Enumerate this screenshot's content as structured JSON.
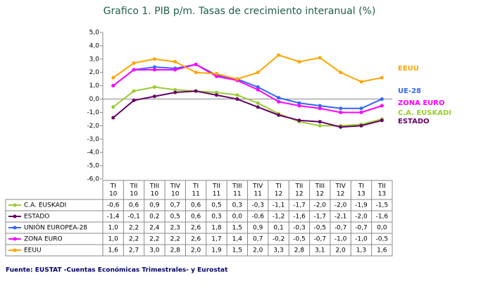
{
  "chart_data": {
    "type": "line",
    "title": "Grafico 1. PIB p/m. Tasas de crecimiento interanual (%)",
    "categories": [
      [
        "TI",
        "10"
      ],
      [
        "TII",
        "10"
      ],
      [
        "TIII",
        "10"
      ],
      [
        "TIV",
        "10"
      ],
      [
        "TI",
        "11"
      ],
      [
        "TII",
        "11"
      ],
      [
        "TIII",
        "11"
      ],
      [
        "TIV",
        "11"
      ],
      [
        "TI",
        "12"
      ],
      [
        "TII",
        "12"
      ],
      [
        "TIII",
        "12"
      ],
      [
        "TIV",
        "12"
      ],
      [
        "TI",
        "13"
      ],
      [
        "TII",
        "13"
      ]
    ],
    "ylim": [
      -6,
      5
    ],
    "yticks": [
      {
        "value": -6,
        "label": "-6,0"
      },
      {
        "value": -5,
        "label": "-5,0"
      },
      {
        "value": -4,
        "label": "-4,0"
      },
      {
        "value": -3,
        "label": "-3,0"
      },
      {
        "value": -2,
        "label": "-2,0"
      },
      {
        "value": -1,
        "label": "-1,0"
      },
      {
        "value": 0,
        "label": "0,0"
      },
      {
        "value": 1,
        "label": "1,0"
      },
      {
        "value": 2,
        "label": "2,0"
      },
      {
        "value": 3,
        "label": "3,0"
      },
      {
        "value": 4,
        "label": "4,0"
      },
      {
        "value": 5,
        "label": "5,0"
      }
    ],
    "grid": false,
    "series": [
      {
        "name": "C.A. EUSKADI",
        "label": "C.A. EUSKADI",
        "color": "#99cc33",
        "values": [
          -0.6,
          0.6,
          0.9,
          0.7,
          0.6,
          0.5,
          0.3,
          -0.3,
          -1.1,
          -1.7,
          -2.0,
          -2.0,
          -1.9,
          -1.5
        ],
        "value_labels": [
          "-0,6",
          "0,6",
          "0,9",
          "0,7",
          "0,6",
          "0,5",
          "0,3",
          "-0,3",
          "-1,1",
          "-1,7",
          "-2,0",
          "-2,0",
          "-1,9",
          "-1,5"
        ]
      },
      {
        "name": "ESTADO",
        "label": "ESTADO",
        "color": "#660066",
        "values": [
          -1.4,
          -0.1,
          0.2,
          0.5,
          0.6,
          0.3,
          0.0,
          -0.6,
          -1.2,
          -1.6,
          -1.7,
          -2.1,
          -2.0,
          -1.6
        ],
        "value_labels": [
          "-1,4",
          "-0,1",
          "0,2",
          "0,5",
          "0,6",
          "0,3",
          "0,0",
          "-0,6",
          "-1,2",
          "-1,6",
          "-1,7",
          "-2,1",
          "-2,0",
          "-1,6"
        ]
      },
      {
        "name": "UNIÓN EUROPEA-28",
        "label": "UE-28",
        "color": "#3366ff",
        "values": [
          1.0,
          2.2,
          2.4,
          2.3,
          2.6,
          1.8,
          1.5,
          0.9,
          0.1,
          -0.3,
          -0.5,
          -0.7,
          -0.7,
          0.0
        ],
        "value_labels": [
          "1,0",
          "2,2",
          "2,4",
          "2,3",
          "2,6",
          "1,8",
          "1,5",
          "0,9",
          "0,1",
          "-0,3",
          "-0,5",
          "-0,7",
          "-0,7",
          "0,0"
        ]
      },
      {
        "name": "ZONA EURO",
        "label": "ZONA EURO",
        "color": "#ff00ff",
        "values": [
          1.0,
          2.2,
          2.2,
          2.2,
          2.6,
          1.7,
          1.4,
          0.7,
          -0.2,
          -0.5,
          -0.7,
          -1.0,
          -1.0,
          -0.5
        ],
        "value_labels": [
          "1,0",
          "2,2",
          "2,2",
          "2,2",
          "2,6",
          "1,7",
          "1,4",
          "0,7",
          "-0,2",
          "-0,5",
          "-0,7",
          "-1,0",
          "-1,0",
          "-0,5"
        ]
      },
      {
        "name": "EEUU",
        "label": "EEUU",
        "color": "#ffa500",
        "values": [
          1.6,
          2.7,
          3.0,
          2.8,
          2.0,
          1.9,
          1.5,
          2.0,
          3.3,
          2.8,
          3.1,
          2.0,
          1.3,
          1.6
        ],
        "value_labels": [
          "1,6",
          "2,7",
          "3,0",
          "2,8",
          "2,0",
          "1,9",
          "1,5",
          "2,0",
          "3,3",
          "2,8",
          "3,1",
          "2,0",
          "1,3",
          "1,6"
        ]
      }
    ],
    "source": "Fuente: EUSTAT -Cuentas Económicas Trimestrales- y Eurostat"
  }
}
